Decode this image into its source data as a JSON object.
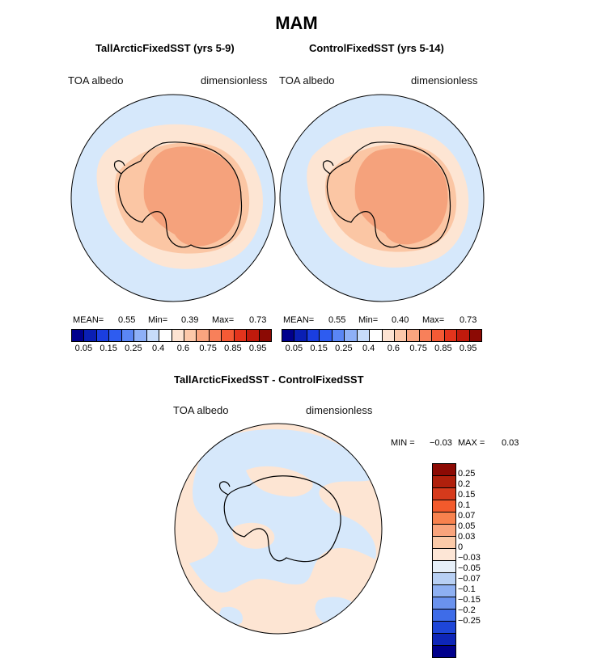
{
  "title": "MAM",
  "panels": [
    {
      "title": "TallArcticFixedSST (yrs 5-9)",
      "var_label": "TOA albedo",
      "units": "dimensionless",
      "mean_label": "MEAN=",
      "mean": "0.55",
      "min_label": "Min=",
      "min": "0.39",
      "max_label": "Max=",
      "max": "0.73"
    },
    {
      "title": "ControlFixedSST (yrs 5-14)",
      "var_label": "TOA albedo",
      "units": "dimensionless",
      "mean_label": "MEAN=",
      "mean": "0.55",
      "min_label": "Min=",
      "min": "0.40",
      "max_label": "Max=",
      "max": "0.73"
    }
  ],
  "colorbar_top": {
    "colors": [
      "#00008c",
      "#0a1fb4",
      "#1a3ee0",
      "#2e5cf0",
      "#5a86f5",
      "#8eb0f7",
      "#c7dcfa",
      "#ffffff",
      "#fde3d2",
      "#fcc8aa",
      "#faa47f",
      "#f8805a",
      "#f45a35",
      "#e3341c",
      "#c01a0c",
      "#8c0a04"
    ],
    "tick_labels": [
      "0.05",
      "0.15",
      "0.25",
      "0.4",
      "0.6",
      "0.75",
      "0.85",
      "0.95"
    ]
  },
  "diff_panel": {
    "title": "TallArcticFixedSST - ControlFixedSST",
    "var_label": "TOA albedo",
    "units": "dimensionless",
    "min_label": "MIN =",
    "min": "−0.03",
    "max_label": "MAX =",
    "max": "0.03"
  },
  "colorbar_diff": {
    "colors": [
      "#8c0a04",
      "#b0200c",
      "#d63a1c",
      "#f25a2c",
      "#f8824e",
      "#f9a47c",
      "#fbcaa8",
      "#fde6d6",
      "#e6eff8",
      "#b8d0f4",
      "#8eb0f2",
      "#6a92ee",
      "#3e6ce8",
      "#1e46d8",
      "#0e26b8",
      "#00008c"
    ],
    "tick_labels": [
      "0.25",
      "0.2",
      "0.15",
      "0.1",
      "0.07",
      "0.05",
      "0.03",
      "0",
      "−0.03",
      "−0.05",
      "−0.07",
      "−0.1",
      "−0.15",
      "−0.2",
      "−0.25"
    ]
  },
  "map_colors": {
    "ocean": "#d6e8fb",
    "sea_ice": "#fde5d3",
    "ice_mid": "#fbc6a4",
    "ice_high": "#f5a27c",
    "coast": "#000000"
  }
}
